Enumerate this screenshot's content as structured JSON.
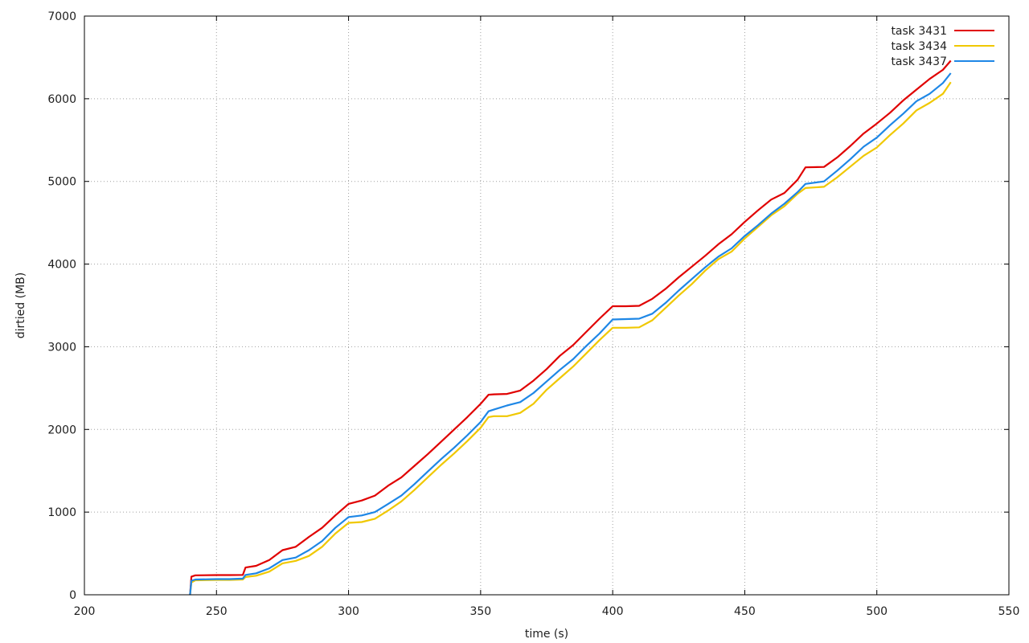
{
  "chart_data": {
    "type": "line",
    "title": "",
    "xlabel": "time (s)",
    "ylabel": "dirtied (MB)",
    "xlim": [
      200,
      550
    ],
    "ylim": [
      0,
      7000
    ],
    "x_ticks": [
      200,
      250,
      300,
      350,
      400,
      450,
      500,
      550
    ],
    "y_ticks": [
      0,
      1000,
      2000,
      3000,
      4000,
      5000,
      6000,
      7000
    ],
    "grid": true,
    "legend_position": "top-right",
    "series": [
      {
        "name": "task 3431",
        "color": "#e00000",
        "points": [
          [
            240,
            0
          ],
          [
            240.5,
            220
          ],
          [
            242,
            235
          ],
          [
            250,
            238
          ],
          [
            255,
            238
          ],
          [
            260,
            240
          ],
          [
            261,
            330
          ],
          [
            265,
            350
          ],
          [
            270,
            420
          ],
          [
            275,
            540
          ],
          [
            280,
            580
          ],
          [
            285,
            700
          ],
          [
            290,
            810
          ],
          [
            295,
            960
          ],
          [
            300,
            1100
          ],
          [
            305,
            1140
          ],
          [
            310,
            1200
          ],
          [
            315,
            1320
          ],
          [
            320,
            1420
          ],
          [
            325,
            1560
          ],
          [
            330,
            1700
          ],
          [
            335,
            1850
          ],
          [
            340,
            2000
          ],
          [
            345,
            2150
          ],
          [
            350,
            2310
          ],
          [
            353,
            2420
          ],
          [
            355,
            2425
          ],
          [
            360,
            2430
          ],
          [
            365,
            2470
          ],
          [
            370,
            2590
          ],
          [
            375,
            2730
          ],
          [
            380,
            2890
          ],
          [
            385,
            3020
          ],
          [
            390,
            3180
          ],
          [
            395,
            3340
          ],
          [
            400,
            3490
          ],
          [
            405,
            3490
          ],
          [
            410,
            3495
          ],
          [
            415,
            3580
          ],
          [
            420,
            3700
          ],
          [
            425,
            3840
          ],
          [
            430,
            3970
          ],
          [
            435,
            4100
          ],
          [
            440,
            4240
          ],
          [
            445,
            4360
          ],
          [
            450,
            4510
          ],
          [
            455,
            4650
          ],
          [
            460,
            4780
          ],
          [
            465,
            4860
          ],
          [
            470,
            5020
          ],
          [
            473,
            5170
          ],
          [
            480,
            5175
          ],
          [
            485,
            5290
          ],
          [
            490,
            5430
          ],
          [
            495,
            5580
          ],
          [
            500,
            5700
          ],
          [
            505,
            5830
          ],
          [
            510,
            5980
          ],
          [
            515,
            6110
          ],
          [
            520,
            6240
          ],
          [
            525,
            6350
          ],
          [
            528,
            6460
          ]
        ]
      },
      {
        "name": "task 3434",
        "color": "#f0c800",
        "points": [
          [
            240,
            0
          ],
          [
            240.5,
            150
          ],
          [
            242,
            175
          ],
          [
            250,
            180
          ],
          [
            255,
            180
          ],
          [
            260,
            185
          ],
          [
            261,
            215
          ],
          [
            265,
            230
          ],
          [
            270,
            280
          ],
          [
            275,
            380
          ],
          [
            280,
            410
          ],
          [
            285,
            470
          ],
          [
            290,
            580
          ],
          [
            295,
            740
          ],
          [
            300,
            870
          ],
          [
            305,
            880
          ],
          [
            310,
            920
          ],
          [
            315,
            1020
          ],
          [
            320,
            1130
          ],
          [
            325,
            1270
          ],
          [
            330,
            1420
          ],
          [
            335,
            1570
          ],
          [
            340,
            1710
          ],
          [
            345,
            1860
          ],
          [
            350,
            2020
          ],
          [
            353,
            2150
          ],
          [
            355,
            2160
          ],
          [
            360,
            2160
          ],
          [
            365,
            2200
          ],
          [
            370,
            2310
          ],
          [
            375,
            2480
          ],
          [
            380,
            2620
          ],
          [
            385,
            2760
          ],
          [
            390,
            2920
          ],
          [
            395,
            3080
          ],
          [
            400,
            3230
          ],
          [
            405,
            3230
          ],
          [
            410,
            3235
          ],
          [
            415,
            3320
          ],
          [
            420,
            3470
          ],
          [
            425,
            3620
          ],
          [
            430,
            3760
          ],
          [
            435,
            3920
          ],
          [
            440,
            4060
          ],
          [
            445,
            4150
          ],
          [
            450,
            4310
          ],
          [
            455,
            4450
          ],
          [
            460,
            4590
          ],
          [
            465,
            4700
          ],
          [
            470,
            4850
          ],
          [
            473,
            4920
          ],
          [
            480,
            4935
          ],
          [
            485,
            5050
          ],
          [
            490,
            5180
          ],
          [
            495,
            5310
          ],
          [
            500,
            5410
          ],
          [
            505,
            5560
          ],
          [
            510,
            5700
          ],
          [
            515,
            5860
          ],
          [
            520,
            5950
          ],
          [
            525,
            6060
          ],
          [
            528,
            6200
          ]
        ]
      },
      {
        "name": "task 3437",
        "color": "#1e87e6",
        "points": [
          [
            240,
            0
          ],
          [
            240.5,
            170
          ],
          [
            242,
            185
          ],
          [
            250,
            190
          ],
          [
            255,
            190
          ],
          [
            260,
            195
          ],
          [
            261,
            240
          ],
          [
            265,
            260
          ],
          [
            270,
            320
          ],
          [
            275,
            420
          ],
          [
            280,
            450
          ],
          [
            285,
            540
          ],
          [
            290,
            650
          ],
          [
            295,
            810
          ],
          [
            300,
            940
          ],
          [
            305,
            960
          ],
          [
            310,
            1000
          ],
          [
            315,
            1100
          ],
          [
            320,
            1200
          ],
          [
            325,
            1340
          ],
          [
            330,
            1490
          ],
          [
            335,
            1640
          ],
          [
            340,
            1780
          ],
          [
            345,
            1930
          ],
          [
            350,
            2090
          ],
          [
            353,
            2220
          ],
          [
            355,
            2240
          ],
          [
            360,
            2290
          ],
          [
            365,
            2330
          ],
          [
            370,
            2440
          ],
          [
            375,
            2580
          ],
          [
            380,
            2720
          ],
          [
            385,
            2850
          ],
          [
            390,
            3010
          ],
          [
            395,
            3160
          ],
          [
            400,
            3330
          ],
          [
            405,
            3335
          ],
          [
            410,
            3340
          ],
          [
            415,
            3400
          ],
          [
            420,
            3530
          ],
          [
            425,
            3680
          ],
          [
            430,
            3820
          ],
          [
            435,
            3960
          ],
          [
            440,
            4090
          ],
          [
            445,
            4190
          ],
          [
            450,
            4340
          ],
          [
            455,
            4470
          ],
          [
            460,
            4610
          ],
          [
            465,
            4730
          ],
          [
            470,
            4870
          ],
          [
            473,
            4970
          ],
          [
            480,
            5000
          ],
          [
            485,
            5130
          ],
          [
            490,
            5270
          ],
          [
            495,
            5420
          ],
          [
            500,
            5530
          ],
          [
            505,
            5680
          ],
          [
            510,
            5820
          ],
          [
            515,
            5970
          ],
          [
            520,
            6060
          ],
          [
            525,
            6190
          ],
          [
            528,
            6310
          ]
        ]
      }
    ]
  }
}
